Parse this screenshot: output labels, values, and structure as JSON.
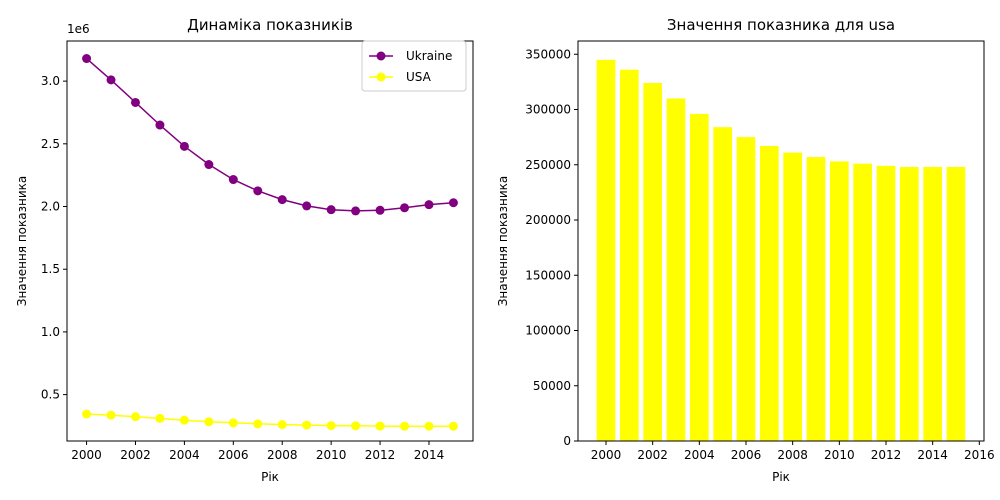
{
  "chart_data": [
    {
      "type": "line",
      "title": "Динаміка показників",
      "xlabel": "Рік",
      "ylabel": "Значення показника",
      "y_offset_label": "1e6",
      "x": [
        2000,
        2001,
        2002,
        2003,
        2004,
        2005,
        2006,
        2007,
        2008,
        2009,
        2010,
        2011,
        2012,
        2013,
        2014,
        2015
      ],
      "xlim": [
        1999.2,
        2015.8
      ],
      "ylim": [
        130000,
        3320000
      ],
      "x_ticks": [
        2000,
        2002,
        2004,
        2006,
        2008,
        2010,
        2012,
        2014
      ],
      "y_ticks": [
        500000,
        1000000,
        1500000,
        2000000,
        2500000,
        3000000
      ],
      "y_tick_labels": [
        "0.5",
        "1.0",
        "1.5",
        "2.0",
        "2.5",
        "3.0"
      ],
      "legend_position": "top-right",
      "grid": false,
      "series": [
        {
          "name": "Ukraine",
          "color": "#800080",
          "values": [
            3180000,
            3010000,
            2830000,
            2650000,
            2480000,
            2335000,
            2215000,
            2125000,
            2055000,
            2005000,
            1975000,
            1965000,
            1970000,
            1990000,
            2015000,
            2030000
          ]
        },
        {
          "name": "USA",
          "color": "#ffff00",
          "values": [
            345000,
            336000,
            324000,
            310000,
            296000,
            284000,
            275000,
            267000,
            261000,
            257000,
            253000,
            251000,
            249000,
            248000,
            248000,
            248000
          ]
        }
      ]
    },
    {
      "type": "bar",
      "title": "Значення показника для usa",
      "xlabel": "Рік",
      "ylabel": "Значення показника",
      "x": [
        2000,
        2001,
        2002,
        2003,
        2004,
        2005,
        2006,
        2007,
        2008,
        2009,
        2010,
        2011,
        2012,
        2013,
        2014,
        2015
      ],
      "values": [
        345000,
        336000,
        324000,
        310000,
        296000,
        284000,
        275000,
        267000,
        261000,
        257000,
        253000,
        251000,
        249000,
        248000,
        248000,
        248000
      ],
      "color": "#ffff00",
      "xlim": [
        1998.8,
        2016.2
      ],
      "ylim": [
        0,
        362000
      ],
      "x_ticks": [
        2000,
        2002,
        2004,
        2006,
        2008,
        2010,
        2012,
        2014,
        2016
      ],
      "y_ticks": [
        0,
        50000,
        100000,
        150000,
        200000,
        250000,
        300000,
        350000
      ],
      "grid": false
    }
  ]
}
